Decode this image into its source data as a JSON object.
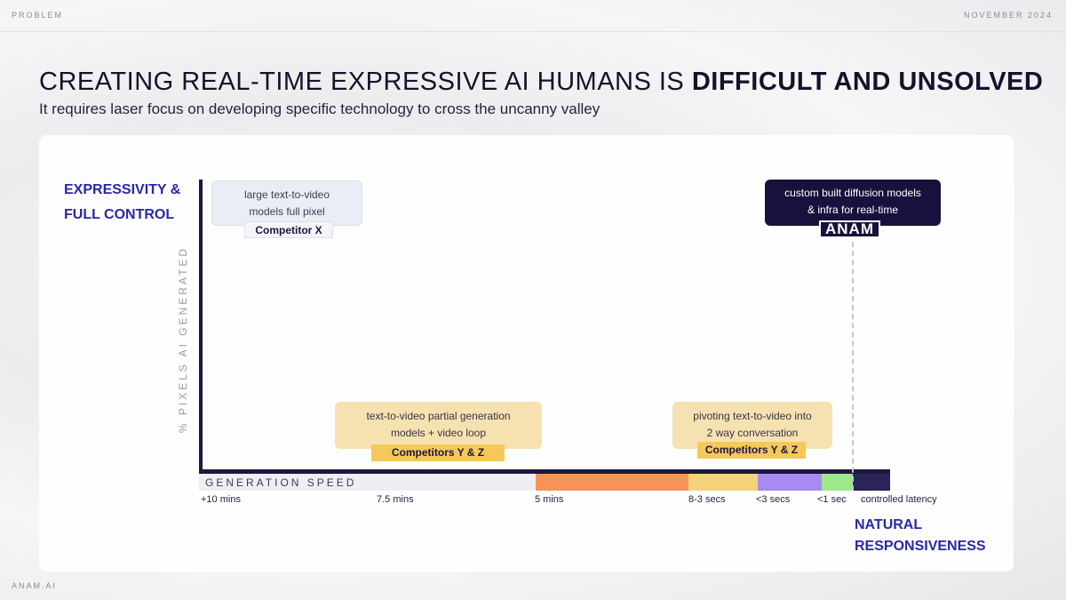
{
  "header": {
    "section": "PROBLEM",
    "date": "NOVEMBER 2024"
  },
  "title": {
    "normal": "CREATING REAL-TIME EXPRESSIVE AI HUMANS IS ",
    "bold": "DIFFICULT AND UNSOLVED"
  },
  "subtitle": "It requires laser focus on developing specific technology to cross the uncanny valley",
  "chart": {
    "y_heading_line1": "EXPRESSIVITY &",
    "y_heading_line2": "FULL CONTROL",
    "y_axis_title": "% PIXELS AI GENERATED",
    "x_axis_title": "GENERATION SPEED",
    "x_heading_line1": "NATURAL",
    "x_heading_line2": "RESPONSIVENESS",
    "ticks": [
      "+10 mins",
      "7.5 mins",
      "5 mins",
      "8-3 secs",
      "<3 secs",
      "<1 sec",
      "controlled latency"
    ],
    "speed_segment_colors": [
      "#eeeef3",
      "#f7935a",
      "#f4d27a",
      "#a78bf0",
      "#9ee88c",
      "#2a2458"
    ],
    "cards": {
      "competitor_x": {
        "line1": "large text-to-video",
        "line2": "models full pixel",
        "tag": "Competitor X"
      },
      "competitors_yz_partial": {
        "line1": "text-to-video partial generation",
        "line2": "models + video loop",
        "tag": "Competitors Y & Z"
      },
      "competitors_yz_pivot": {
        "line1": "pivoting text-to-video into",
        "line2": "2 way conversation",
        "tag": "Competitors Y & Z"
      },
      "anam": {
        "line1": "custom built diffusion models",
        "line2": "& infra for real-time",
        "tag": "ANAM"
      }
    }
  },
  "footer": "ANAM.AI",
  "colors": {
    "accent_blue": "#2a27a8",
    "navy": "#16123d",
    "tag_yellow": "#f5c85a"
  }
}
